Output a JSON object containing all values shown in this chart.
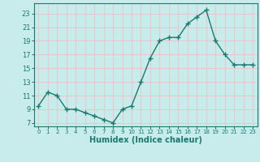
{
  "x": [
    0,
    1,
    2,
    3,
    4,
    5,
    6,
    7,
    8,
    9,
    10,
    11,
    12,
    13,
    14,
    15,
    16,
    17,
    18,
    19,
    20,
    21,
    22,
    23
  ],
  "y": [
    9.5,
    11.5,
    11.0,
    9.0,
    9.0,
    8.5,
    8.0,
    7.5,
    7.0,
    9.0,
    9.5,
    13.0,
    16.5,
    19.0,
    19.5,
    19.5,
    21.5,
    22.5,
    23.5,
    19.0,
    17.0,
    15.5,
    15.5,
    15.5
  ],
  "line_color": "#1a7a6e",
  "marker": "+",
  "bg_color": "#c8ecec",
  "grid_color": "#e8c8c8",
  "xlabel": "Humidex (Indice chaleur)",
  "ylabel_ticks": [
    7,
    9,
    11,
    13,
    15,
    17,
    19,
    21,
    23
  ],
  "xlim": [
    -0.5,
    23.5
  ],
  "ylim": [
    6.5,
    24.5
  ]
}
